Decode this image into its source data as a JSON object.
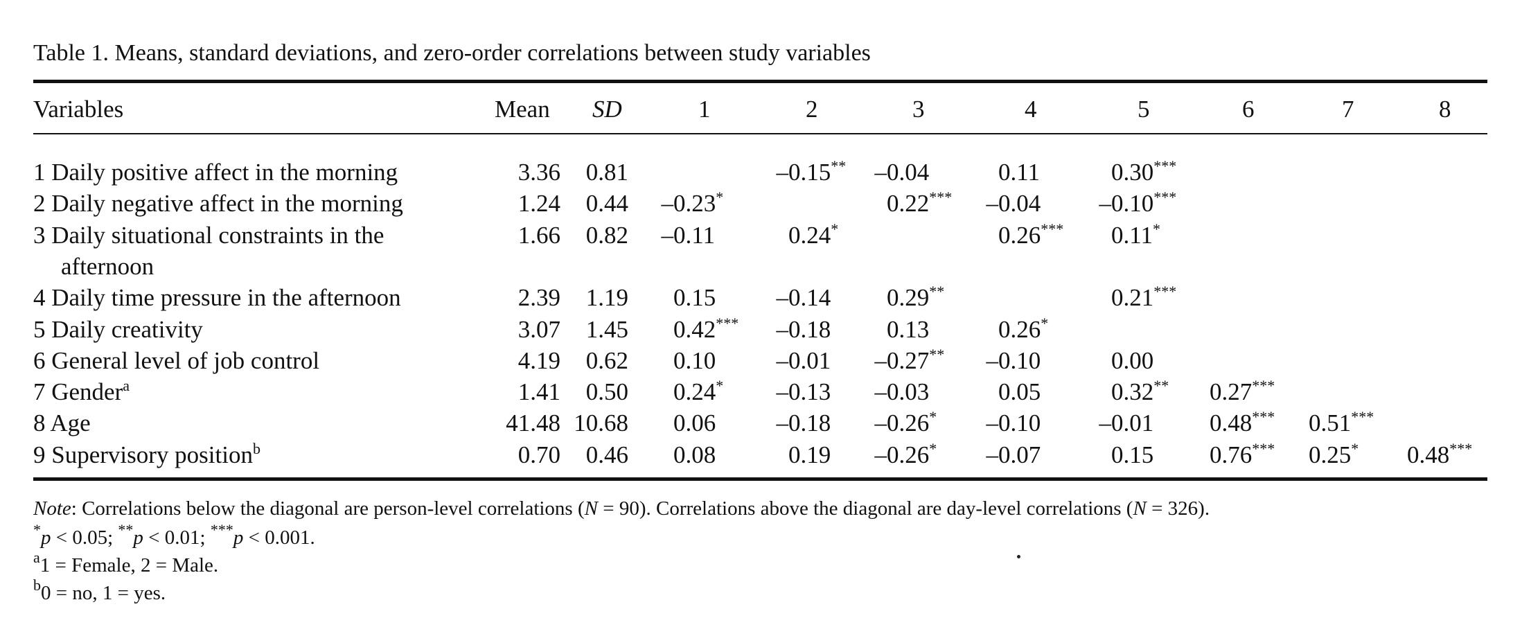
{
  "title": "Table 1. Means, standard deviations, and zero-order correlations between study variables",
  "headers": {
    "variables": "Variables",
    "mean": "Mean",
    "sd": "SD",
    "cols": [
      "1",
      "2",
      "3",
      "4",
      "5",
      "6",
      "7",
      "8"
    ]
  },
  "rows": [
    {
      "num": "1",
      "label": "Daily positive affect in the morning",
      "label2": "",
      "sup": "",
      "mean": "3.36",
      "sd": "0.81",
      "cells": [
        null,
        {
          "v": "–0.15",
          "s": "**"
        },
        {
          "v": "–0.04",
          "s": ""
        },
        {
          "v": "0.11",
          "s": ""
        },
        {
          "v": "0.30",
          "s": "***"
        },
        null,
        null,
        null
      ]
    },
    {
      "num": "2",
      "label": "Daily negative affect in the morning",
      "label2": "",
      "sup": "",
      "mean": "1.24",
      "sd": "0.44",
      "cells": [
        {
          "v": "–0.23",
          "s": "*"
        },
        null,
        {
          "v": "0.22",
          "s": "***"
        },
        {
          "v": "–0.04",
          "s": ""
        },
        {
          "v": "–0.10",
          "s": "***"
        },
        null,
        null,
        null
      ]
    },
    {
      "num": "3",
      "label": "Daily situational constraints in the",
      "label2": "afternoon",
      "sup": "",
      "mean": "1.66",
      "sd": "0.82",
      "cells": [
        {
          "v": "–0.11",
          "s": ""
        },
        {
          "v": "0.24",
          "s": "*"
        },
        null,
        {
          "v": "0.26",
          "s": "***"
        },
        {
          "v": "0.11",
          "s": "*"
        },
        null,
        null,
        null
      ]
    },
    {
      "num": "4",
      "label": "Daily time pressure in the afternoon",
      "label2": "",
      "sup": "",
      "mean": "2.39",
      "sd": "1.19",
      "cells": [
        {
          "v": "0.15",
          "s": ""
        },
        {
          "v": "–0.14",
          "s": ""
        },
        {
          "v": "0.29",
          "s": "**"
        },
        null,
        {
          "v": "0.21",
          "s": "***"
        },
        null,
        null,
        null
      ]
    },
    {
      "num": "5",
      "label": "Daily creativity",
      "label2": "",
      "sup": "",
      "mean": "3.07",
      "sd": "1.45",
      "cells": [
        {
          "v": "0.42",
          "s": "***"
        },
        {
          "v": "–0.18",
          "s": ""
        },
        {
          "v": "0.13",
          "s": ""
        },
        {
          "v": "0.26",
          "s": "*"
        },
        null,
        null,
        null,
        null
      ]
    },
    {
      "num": "6",
      "label": "General level of job control",
      "label2": "",
      "sup": "",
      "mean": "4.19",
      "sd": "0.62",
      "cells": [
        {
          "v": "0.10",
          "s": ""
        },
        {
          "v": "–0.01",
          "s": ""
        },
        {
          "v": "–0.27",
          "s": "**"
        },
        {
          "v": "–0.10",
          "s": ""
        },
        {
          "v": "0.00",
          "s": ""
        },
        null,
        null,
        null
      ]
    },
    {
      "num": "7",
      "label": "Gender",
      "label2": "",
      "sup": "a",
      "mean": "1.41",
      "sd": "0.50",
      "cells": [
        {
          "v": "0.24",
          "s": "*"
        },
        {
          "v": "–0.13",
          "s": ""
        },
        {
          "v": "–0.03",
          "s": ""
        },
        {
          "v": "0.05",
          "s": ""
        },
        {
          "v": "0.32",
          "s": "**"
        },
        {
          "v": "0.27",
          "s": "***"
        },
        null,
        null
      ]
    },
    {
      "num": "8",
      "label": "Age",
      "label2": "",
      "sup": "",
      "mean": "41.48",
      "sd": "10.68",
      "cells": [
        {
          "v": "0.06",
          "s": ""
        },
        {
          "v": "–0.18",
          "s": ""
        },
        {
          "v": "–0.26",
          "s": "*"
        },
        {
          "v": "–0.10",
          "s": ""
        },
        {
          "v": "–0.01",
          "s": ""
        },
        {
          "v": "0.48",
          "s": "***"
        },
        {
          "v": "0.51",
          "s": "***"
        },
        null
      ]
    },
    {
      "num": "9",
      "label": "Supervisory position",
      "label2": "",
      "sup": "b",
      "mean": "0.70",
      "sd": "0.46",
      "cells": [
        {
          "v": "0.08",
          "s": ""
        },
        {
          "v": "0.19",
          "s": ""
        },
        {
          "v": "–0.26",
          "s": "*"
        },
        {
          "v": "–0.07",
          "s": ""
        },
        {
          "v": "0.15",
          "s": ""
        },
        {
          "v": "0.76",
          "s": "***"
        },
        {
          "v": "0.25",
          "s": "*"
        },
        {
          "v": "0.48",
          "s": "***"
        }
      ]
    }
  ],
  "notes": {
    "note_label": "Note",
    "note_text_1": ": Correlations below the diagonal are person-level correlations (",
    "n_symbol": "N",
    "note_n1": " = 90). Correlations above the diagonal are day-level correlations (",
    "note_n2": " = 326).",
    "sig": [
      {
        "stars": "*",
        "p": "p",
        "rest": " < 0.05; "
      },
      {
        "stars": "**",
        "p": "p",
        "rest": " < 0.01; "
      },
      {
        "stars": "***",
        "p": "p",
        "rest": " < 0.001."
      }
    ],
    "gender": {
      "sup": "a",
      "text": "1 = Female, 2 = Male."
    },
    "supervisory": {
      "sup": "b",
      "text": "0 = no, 1 = yes."
    }
  }
}
